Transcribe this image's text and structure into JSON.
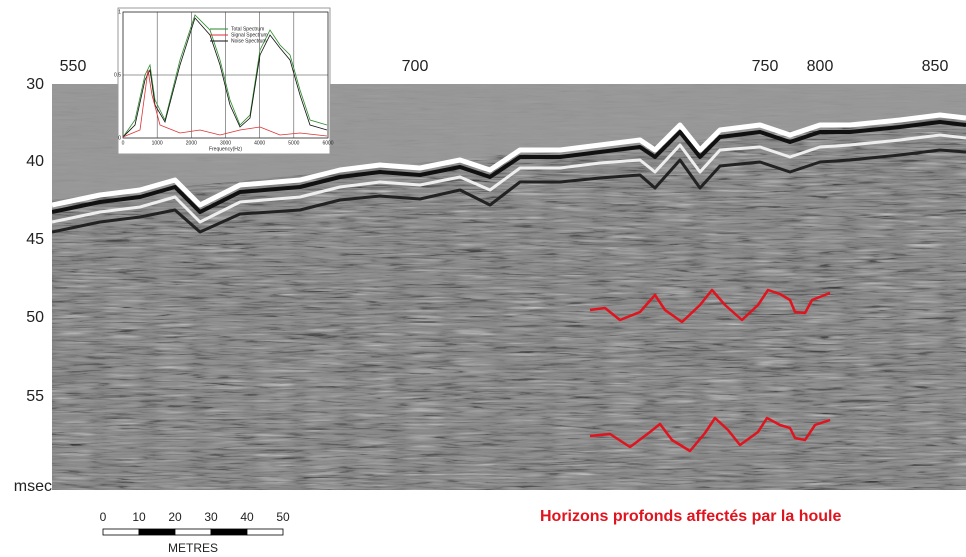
{
  "top_axis": {
    "labels": [
      "550",
      "700",
      "750",
      "800",
      "850"
    ]
  },
  "left_axis": {
    "labels": [
      "30",
      "40",
      "45",
      "50",
      "55"
    ],
    "unit": "msec"
  },
  "inset": {
    "legend": [
      "Total Spectrum",
      "Signal Spectrum",
      "Noise Spectrum"
    ],
    "x_label": "Frequency(Hz)",
    "x_ticks": [
      "0",
      "1000",
      "2000",
      "3000",
      "4000",
      "5000",
      "6000"
    ],
    "y_ticks": [
      "0",
      "0.5",
      "1"
    ]
  },
  "scale_bar": {
    "labels": [
      "0",
      "10",
      "20",
      "30",
      "40",
      "50"
    ],
    "unit": "METRES"
  },
  "annotation": "Horizons profonds affectés par la houle"
}
